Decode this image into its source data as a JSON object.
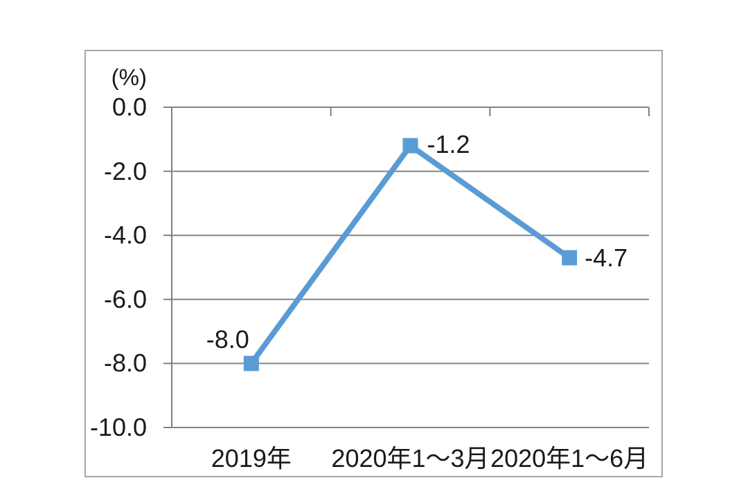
{
  "chart_data": {
    "type": "line",
    "title": "",
    "unit_label": "(%)",
    "categories": [
      "2019年",
      "2020年1～3月",
      "2020年1～6月"
    ],
    "values": [
      -8.0,
      -1.2,
      -4.7
    ],
    "data_labels": [
      "-8.0",
      "-1.2",
      "-4.7"
    ],
    "ylim": [
      -10,
      0
    ],
    "ytick_interval": 2,
    "ytick_labels": [
      "0.0",
      "-2.0",
      "-4.0",
      "-6.0",
      "-8.0",
      "-10.0"
    ],
    "grid": true,
    "legend": "none",
    "marker": "square",
    "colors": {
      "line": "#5B9BD5",
      "marker": "#5B9BD5",
      "gridline": "#848484",
      "axis": "#808080",
      "frame_border": "#A6A6A6",
      "text": "#1A1A1A",
      "background": "#FFFFFF"
    }
  }
}
